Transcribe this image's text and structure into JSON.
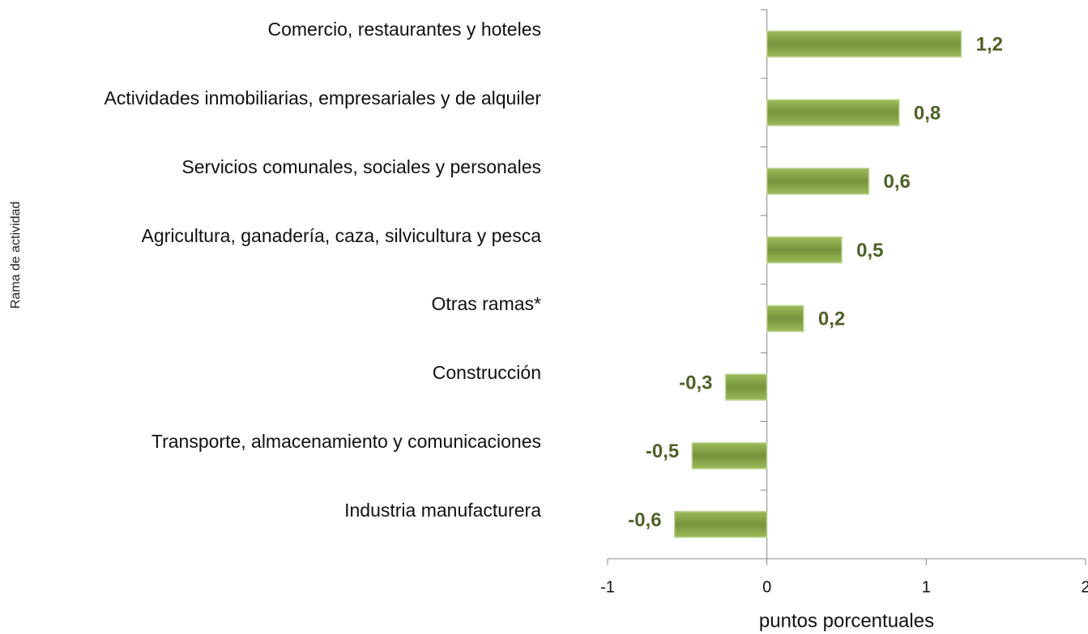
{
  "chart_data": {
    "type": "bar",
    "orientation": "horizontal",
    "categories": [
      "Comercio, restaurantes y hoteles",
      "Actividades inmobiliarias, empresariales y de alquiler",
      "Servicios comunales, sociales y personales",
      "Agricultura, ganadería, caza, silvicultura y pesca",
      "Otras ramas*",
      "Construcción",
      "Transporte, almacenamiento y comunicaciones",
      "Industria manufacturera"
    ],
    "values": [
      1.22,
      0.83,
      0.64,
      0.47,
      0.23,
      -0.26,
      -0.47,
      -0.58
    ],
    "value_labels": [
      "1,2",
      "0,8",
      "0,6",
      "0,5",
      "0,2",
      "-0,3",
      "-0,5",
      "-0,6"
    ],
    "color": "#77933c",
    "label_color": "#4f6228",
    "xlim": [
      -1,
      2
    ],
    "xticks": [
      -1,
      0,
      1,
      2
    ],
    "xlabel": "puntos porcentuales",
    "ylabel": "Rama de actividad"
  }
}
